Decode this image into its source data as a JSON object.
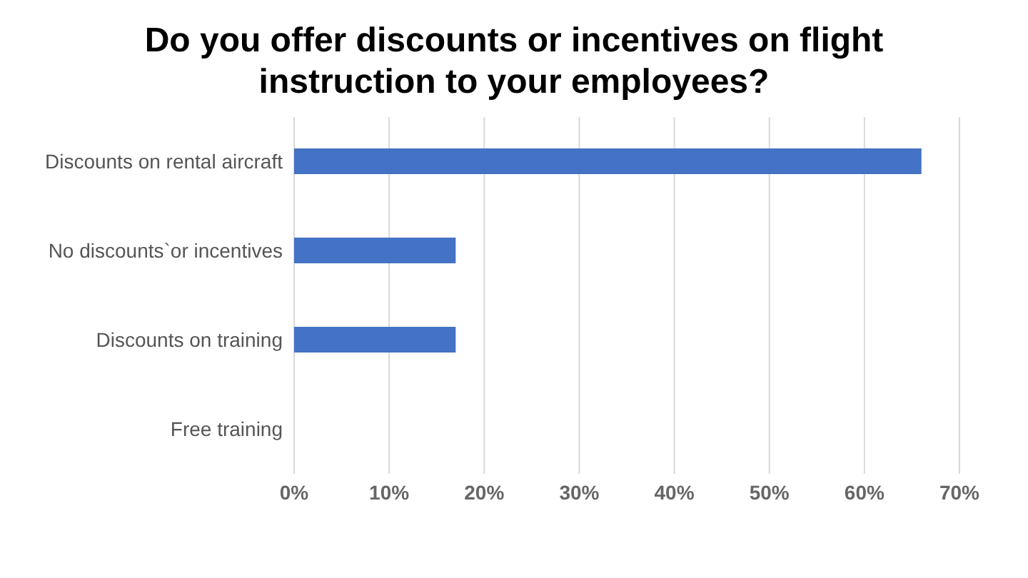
{
  "chart_data": {
    "type": "bar",
    "orientation": "horizontal",
    "title": "Do you offer discounts or incentives on flight instruction to your employees?",
    "categories": [
      "Discounts on rental aircraft",
      "No discounts`or incentives",
      "Discounts on training",
      "Free training"
    ],
    "values": [
      66,
      17,
      17,
      0
    ],
    "color": "#4472c4",
    "xlim": [
      0,
      70
    ],
    "xticks": [
      {
        "value": 0,
        "label": "0%"
      },
      {
        "value": 10,
        "label": "10%"
      },
      {
        "value": 20,
        "label": "20%"
      },
      {
        "value": 30,
        "label": "30%"
      },
      {
        "value": 40,
        "label": "40%"
      },
      {
        "value": 50,
        "label": "50%"
      },
      {
        "value": 60,
        "label": "60%"
      },
      {
        "value": 70,
        "label": "70%"
      }
    ],
    "grid": "x",
    "legend": false
  }
}
